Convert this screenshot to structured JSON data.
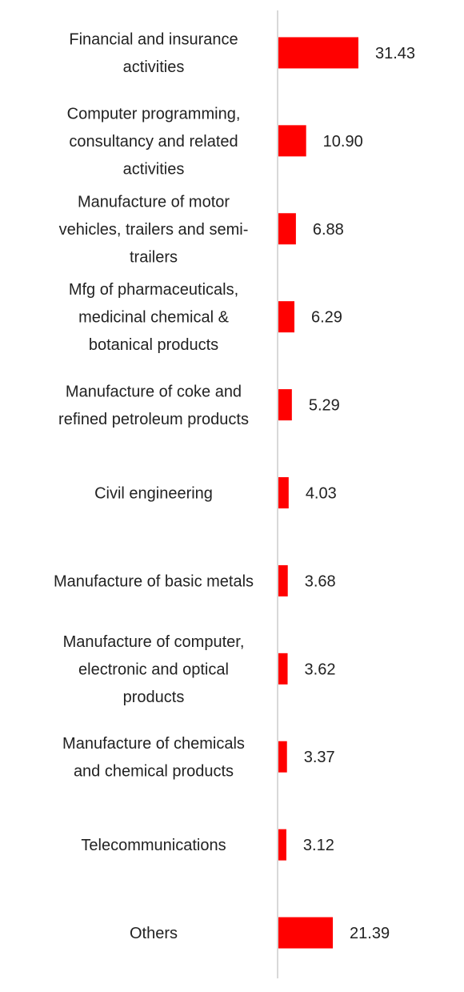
{
  "chart_data": {
    "type": "bar",
    "orientation": "horizontal",
    "title": "",
    "xlabel": "",
    "ylabel": "",
    "grid": false,
    "legend": "none",
    "categories": [
      [
        "Financial and insurance",
        "activities"
      ],
      [
        "Computer programming,",
        "consultancy and related",
        "activities"
      ],
      [
        "Manufacture of motor",
        "vehicles, trailers and semi-",
        "trailers"
      ],
      [
        "Mfg of pharmaceuticals,",
        "medicinal chemical &",
        "botanical products"
      ],
      [
        "Manufacture of coke and",
        "refined petroleum products"
      ],
      [
        "Civil engineering"
      ],
      [
        "Manufacture of basic metals"
      ],
      [
        "Manufacture of computer,",
        "electronic and optical",
        "products"
      ],
      [
        "Manufacture of chemicals",
        "and chemical products"
      ],
      [
        "Telecommunications"
      ],
      [
        "Others"
      ]
    ],
    "values": [
      31.43,
      10.9,
      6.88,
      6.29,
      5.29,
      4.03,
      3.68,
      3.62,
      3.37,
      3.12,
      21.39
    ],
    "value_labels": [
      "31.43",
      "10.90",
      "6.88",
      "6.29",
      "5.29",
      "4.03",
      "3.68",
      "3.62",
      "3.37",
      "3.12",
      "21.39"
    ],
    "xlim": [
      0,
      31.43
    ],
    "colors": {
      "bar": "#ff0000",
      "axis": "#d9d9d9",
      "text": "#222222"
    }
  }
}
